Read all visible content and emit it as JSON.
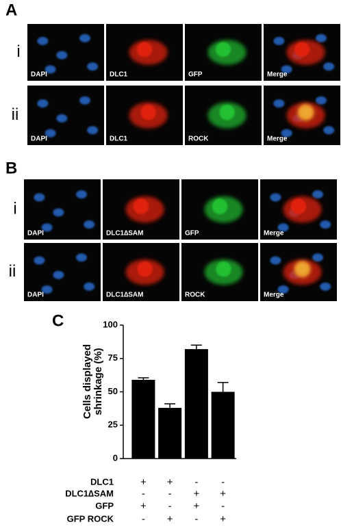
{
  "panels": [
    {
      "label": "A",
      "rows": [
        {
          "label": "i",
          "images": [
            "DAPI",
            "DLC1",
            "GFP",
            "Merge"
          ]
        },
        {
          "label": "ii",
          "images": [
            "DAPI",
            "DLC1",
            "ROCK",
            "Merge"
          ]
        }
      ]
    },
    {
      "label": "B",
      "rows": [
        {
          "label": "i",
          "images": [
            "DAPI",
            "DLC1∆SAM",
            "GFP",
            "Merge"
          ]
        },
        {
          "label": "ii",
          "images": [
            "DAPI",
            "DLC1∆SAM",
            "ROCK",
            "Merge"
          ]
        }
      ]
    }
  ],
  "chart_panel_label": "C",
  "chart_data": {
    "type": "bar",
    "ylabel": [
      "Cells displayed",
      "shrinkage (%)"
    ],
    "categories": [
      null,
      null,
      null,
      null
    ],
    "values": [
      59,
      38,
      82,
      50
    ],
    "errors": [
      1.5,
      3,
      3,
      7
    ],
    "color": "#000000",
    "ylim": [
      0,
      100
    ],
    "yticks": [
      0,
      25,
      50,
      75,
      100
    ]
  },
  "conditions": [
    {
      "name": "DLC1",
      "signs": [
        "+",
        "+",
        "-",
        "-"
      ]
    },
    {
      "name": "DLC1∆SAM",
      "signs": [
        "-",
        "-",
        "+",
        "+"
      ]
    },
    {
      "name": "GFP",
      "signs": [
        "+",
        "-",
        "+",
        "-"
      ]
    },
    {
      "name": "GFP ROCK",
      "signs": [
        "-",
        "+",
        "-",
        "+"
      ]
    }
  ]
}
